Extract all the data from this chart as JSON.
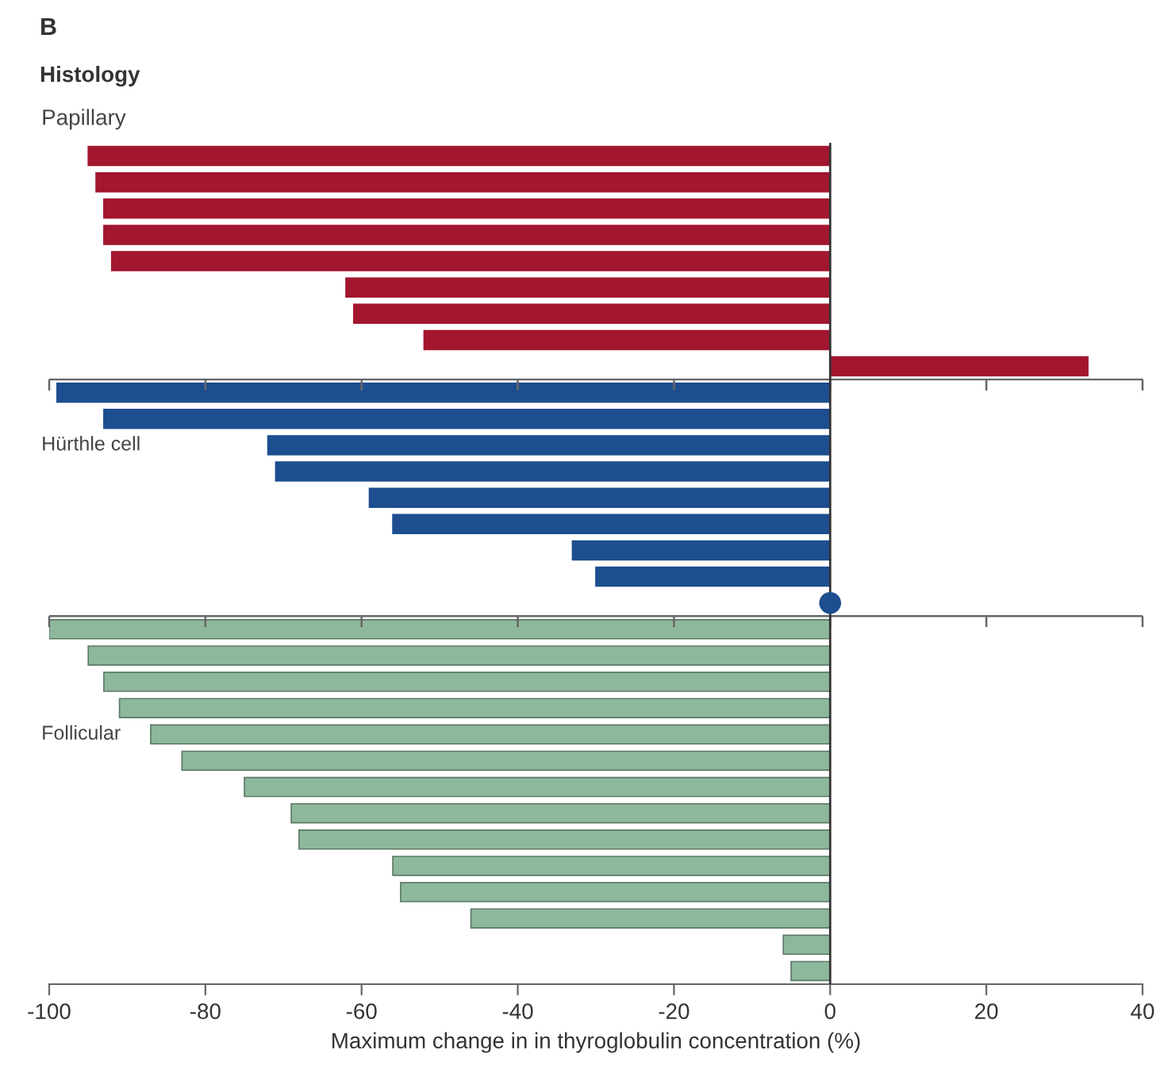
{
  "chart_data": {
    "type": "bar",
    "orientation": "horizontal",
    "annotations": [
      "B",
      "Histology"
    ],
    "xlabel": "Maximum change in in thyroglobulin concentration (%)",
    "categories": [
      null,
      null,
      null,
      null,
      null,
      null,
      null,
      null,
      null,
      null,
      null,
      null,
      null,
      null,
      null,
      null,
      null,
      null,
      null,
      null,
      null,
      null,
      null,
      null,
      null,
      null,
      null,
      null,
      null,
      null,
      null,
      null
    ],
    "series": [
      {
        "name": "Papillary",
        "color": "#a3162f",
        "values": [
          -95,
          -94,
          -93,
          -93,
          -92,
          -62,
          -61,
          -52,
          33,
          null,
          null,
          null,
          null,
          null,
          null,
          null,
          null,
          null,
          null,
          null,
          null,
          null,
          null,
          null,
          null,
          null,
          null,
          null,
          null,
          null,
          null,
          null
        ]
      },
      {
        "name": "Hürthle cell",
        "color": "#1d4e8f",
        "values": [
          null,
          null,
          null,
          null,
          null,
          null,
          null,
          null,
          null,
          -99,
          -93,
          -72,
          -71,
          -59,
          -56,
          -33,
          -30,
          0,
          null,
          null,
          null,
          null,
          null,
          null,
          null,
          null,
          null,
          null,
          null,
          null,
          null,
          null
        ]
      },
      {
        "type": "scatter",
        "color": "#1d4e8f",
        "marker": "circle",
        "values": [
          null,
          null,
          null,
          null,
          null,
          null,
          null,
          null,
          null,
          null,
          null,
          null,
          null,
          null,
          null,
          null,
          null,
          0,
          null,
          null,
          null,
          null,
          null,
          null,
          null,
          null,
          null,
          null,
          null,
          null,
          null,
          null
        ]
      },
      {
        "name": "Follicular",
        "color": "#8db89c",
        "values": [
          null,
          null,
          null,
          null,
          null,
          null,
          null,
          null,
          null,
          null,
          null,
          null,
          null,
          null,
          null,
          null,
          null,
          null,
          -100,
          -95,
          -93,
          -91,
          -87,
          -83,
          -75,
          -69,
          -68,
          -56,
          -55,
          -46,
          -6,
          -5
        ]
      }
    ],
    "xlim": [
      -100,
      40
    ],
    "xticks": [
      -100,
      -80,
      -60,
      -40,
      -20,
      0,
      20,
      40
    ],
    "grid": false,
    "legend": false,
    "ref_lines": [
      {
        "axis": "x",
        "value": 0
      }
    ]
  }
}
